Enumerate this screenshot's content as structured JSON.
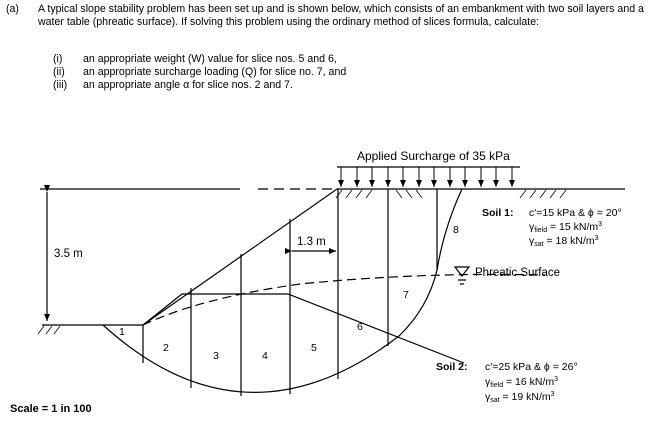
{
  "question": {
    "part": "(a)",
    "intro": "A typical slope stability problem has been set up and is shown below, which consists of an embankment with two soil layers and a water table (phreatic surface). If solving this problem using the ordinary method of slices formula, calculate:",
    "items": [
      {
        "num": "(i)",
        "text": "an appropriate weight (W) value for slice nos. 5 and 6,"
      },
      {
        "num": "(ii)",
        "text": "an appropriate surcharge loading (Q) for slice no. 7, and"
      },
      {
        "num": "(iii)",
        "text": "an appropriate angle α for slice nos. 2 and 7."
      }
    ]
  },
  "figure": {
    "surcharge_label": "Applied Surcharge of 35 kPa",
    "height_label": "3.5 m",
    "width_label": "1.3 m",
    "phreatic_label": "Phreatic Surface",
    "scale_label": "Scale = 1 in 100",
    "slices": [
      "1",
      "2",
      "3",
      "4",
      "5",
      "6",
      "7",
      "8"
    ],
    "soil1": {
      "name": "Soil 1:",
      "params": "c'=15 kPa & ϕ = 20°",
      "gamma": "γ",
      "field_sub": "field",
      "field_val": " = 15 kN/m",
      "sat_sub": "sat",
      "sat_val": " = 18 kN/m",
      "cube": "3"
    },
    "soil2": {
      "name": "Soil 2:",
      "params": "c'=25 kPa & ϕ = 26°",
      "gamma": "γ",
      "field_sub": "field",
      "field_val": " = 16 kN/m",
      "sat_sub": "sat",
      "sat_val": " = 19 kN/m",
      "cube": "3"
    }
  }
}
